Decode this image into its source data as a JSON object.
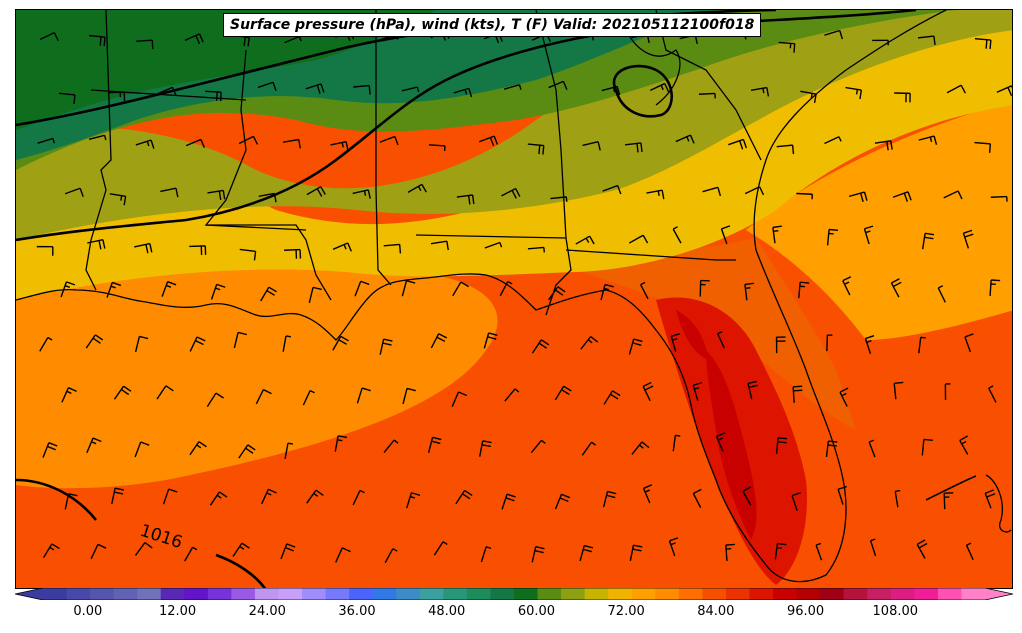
{
  "title": "Surface pressure (hPa), wind (kts), T (F) Valid: 202105112100f018",
  "isobar_label": "1016",
  "colorbar": {
    "tick_labels": [
      "0.00",
      "12.00",
      "24.00",
      "36.00",
      "48.00",
      "60.00",
      "72.00",
      "84.00",
      "96.00",
      "108.00"
    ],
    "tick_values": [
      0,
      12,
      24,
      36,
      48,
      60,
      72,
      84,
      96,
      108
    ],
    "min": -6,
    "max": 120,
    "colors": [
      "#3c3ca0",
      "#4848a8",
      "#5555ad",
      "#6262b4",
      "#7070bb",
      "#5a28b4",
      "#6414c8",
      "#7832dc",
      "#9a5ae6",
      "#be96f0",
      "#c8a0fa",
      "#a08cfa",
      "#7878fa",
      "#4c64fa",
      "#3278e6",
      "#3c8cc8",
      "#3ca0a0",
      "#289678",
      "#1e8c5a",
      "#147846",
      "#0f6e1e",
      "#5a8c14",
      "#8ca014",
      "#c8b400",
      "#f0b400",
      "#ffa000",
      "#ff8c00",
      "#ff6e00",
      "#f55000",
      "#eb3200",
      "#dc1400",
      "#c80000",
      "#b40000",
      "#a00014",
      "#b4143c",
      "#c81e64",
      "#dc1e82",
      "#f01e96",
      "#ff50b4",
      "#ff82c8"
    ]
  },
  "colors": {
    "ocean_hot": "#f85000",
    "gulf_warm": "#ff8c00",
    "coast_orange": "#ffa000",
    "yellow": "#f0be00",
    "olive": "#a0a014",
    "green_light": "#5a8c14",
    "green_mid": "#147846",
    "green_dark": "#0f6e1e",
    "red": "#dc1400",
    "dark_red": "#c80000"
  }
}
